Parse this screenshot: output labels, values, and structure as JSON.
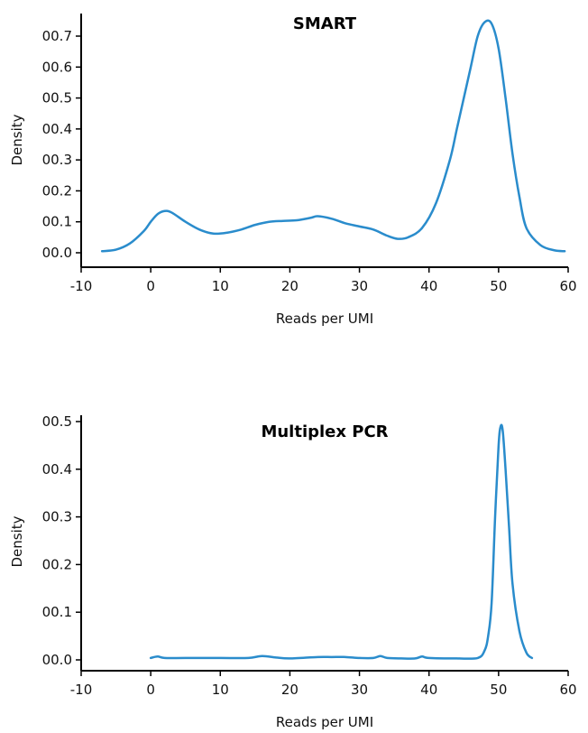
{
  "chart_data": [
    {
      "type": "line",
      "title": "SMART",
      "xlabel": "Reads per UMI",
      "ylabel": "Density",
      "xlim": [
        -10,
        60
      ],
      "ylim": [
        0.0,
        0.7
      ],
      "x_ticks": [
        -10,
        0,
        10,
        20,
        30,
        40,
        50,
        60
      ],
      "x_tick_labels": [
        "-10",
        "0",
        "10",
        "20",
        "30",
        "40",
        "50",
        "60"
      ],
      "y_ticks": [
        0.0,
        0.1,
        0.2,
        0.3,
        0.4,
        0.5,
        0.6,
        0.7
      ],
      "y_tick_labels": [
        "00.0",
        "00.1",
        "00.2",
        "00.3",
        "00.4",
        "00.5",
        "00.6",
        "00.7"
      ],
      "grid": false,
      "color": "#2a8ccc",
      "series": [
        {
          "x": [
            -7,
            -5,
            -3,
            -1,
            0,
            1,
            2,
            3,
            5,
            7,
            9,
            11,
            13,
            15,
            17,
            19,
            21,
            23,
            24,
            26,
            28,
            30,
            32,
            34,
            35.5,
            37,
            39,
            41,
            43,
            44,
            45,
            46,
            47,
            48,
            49,
            50,
            51,
            52,
            53,
            54,
            56,
            58,
            59.5
          ],
          "y": [
            0.005,
            0.01,
            0.03,
            0.07,
            0.1,
            0.125,
            0.135,
            0.13,
            0.1,
            0.075,
            0.062,
            0.065,
            0.075,
            0.09,
            0.1,
            0.103,
            0.105,
            0.113,
            0.118,
            0.11,
            0.095,
            0.085,
            0.075,
            0.055,
            0.045,
            0.05,
            0.08,
            0.16,
            0.3,
            0.4,
            0.5,
            0.6,
            0.7,
            0.745,
            0.74,
            0.66,
            0.5,
            0.32,
            0.18,
            0.08,
            0.025,
            0.008,
            0.005
          ]
        }
      ]
    },
    {
      "type": "line",
      "title": "Multiplex PCR",
      "xlabel": "Reads per UMI",
      "ylabel": "Density",
      "xlim": [
        -10,
        60
      ],
      "ylim": [
        0.0,
        0.5
      ],
      "x_ticks": [
        -10,
        0,
        10,
        20,
        30,
        40,
        50,
        60
      ],
      "x_tick_labels": [
        "-10",
        "0",
        "10",
        "20",
        "30",
        "40",
        "50",
        "60"
      ],
      "y_ticks": [
        0.0,
        0.1,
        0.2,
        0.3,
        0.4,
        0.5
      ],
      "y_tick_labels": [
        "00.0",
        "00.1",
        "00.2",
        "00.3",
        "00.4",
        "00.5"
      ],
      "grid": false,
      "color": "#2a8ccc",
      "series": [
        {
          "x": [
            0,
            1,
            2,
            5,
            10,
            14,
            16,
            18,
            20,
            24,
            26,
            28,
            30,
            32,
            33,
            34,
            36,
            38,
            39,
            40,
            44,
            47,
            48,
            48.5,
            49,
            49.5,
            50,
            50.3,
            50.6,
            51,
            51.5,
            52,
            53,
            54,
            54.8
          ],
          "y": [
            0.004,
            0.007,
            0.004,
            0.004,
            0.004,
            0.004,
            0.008,
            0.005,
            0.003,
            0.006,
            0.006,
            0.006,
            0.004,
            0.004,
            0.008,
            0.004,
            0.003,
            0.003,
            0.007,
            0.004,
            0.003,
            0.004,
            0.02,
            0.05,
            0.12,
            0.3,
            0.45,
            0.49,
            0.48,
            0.4,
            0.28,
            0.16,
            0.06,
            0.015,
            0.004
          ]
        }
      ]
    }
  ]
}
